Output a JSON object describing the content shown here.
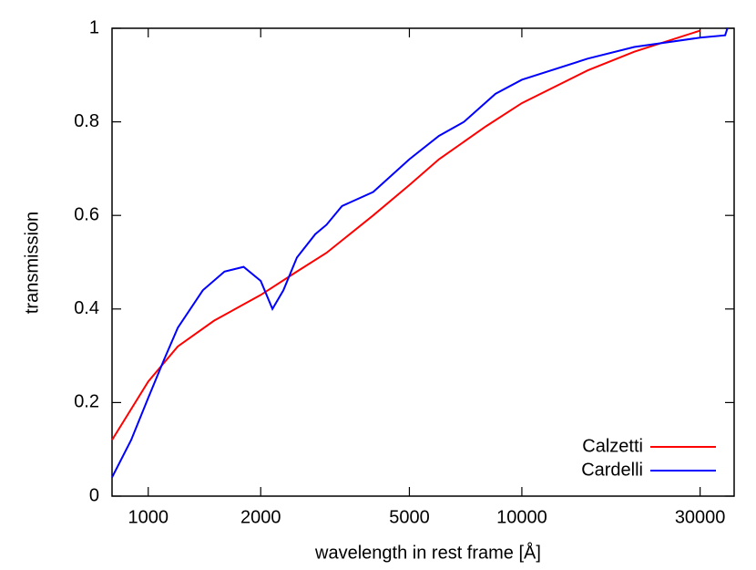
{
  "chart_data": {
    "type": "line",
    "xlabel": "wavelength in rest frame [Å]",
    "ylabel": "transmission",
    "xscale": "log",
    "xlim": [
      800,
      37000
    ],
    "ylim": [
      0,
      1
    ],
    "xticks": [
      1000,
      2000,
      5000,
      10000,
      30000
    ],
    "yticks": [
      0,
      0.2,
      0.4,
      0.6,
      0.8,
      1
    ],
    "grid": false,
    "legend": "bottom-right",
    "series": [
      {
        "name": "Calzetti",
        "color": "#ff0000",
        "x": [
          800,
          1000,
          1200,
          1500,
          2000,
          2500,
          3000,
          4000,
          5000,
          6000,
          8000,
          10000,
          15000,
          20000,
          30000
        ],
        "values": [
          0.12,
          0.245,
          0.32,
          0.375,
          0.43,
          0.48,
          0.52,
          0.6,
          0.665,
          0.72,
          0.79,
          0.84,
          0.91,
          0.95,
          0.995
        ]
      },
      {
        "name": "Cardelli",
        "color": "#0000ff",
        "x": [
          800,
          900,
          1000,
          1100,
          1200,
          1400,
          1600,
          1800,
          2000,
          2150,
          2300,
          2500,
          2800,
          3000,
          3300,
          4000,
          5000,
          6000,
          7000,
          8500,
          10000,
          15000,
          20000,
          30000,
          35000,
          35500
        ],
        "values": [
          0.04,
          0.12,
          0.21,
          0.29,
          0.36,
          0.44,
          0.48,
          0.49,
          0.46,
          0.4,
          0.44,
          0.51,
          0.56,
          0.58,
          0.62,
          0.65,
          0.72,
          0.77,
          0.8,
          0.86,
          0.89,
          0.935,
          0.96,
          0.98,
          0.985,
          1.0
        ]
      }
    ]
  }
}
